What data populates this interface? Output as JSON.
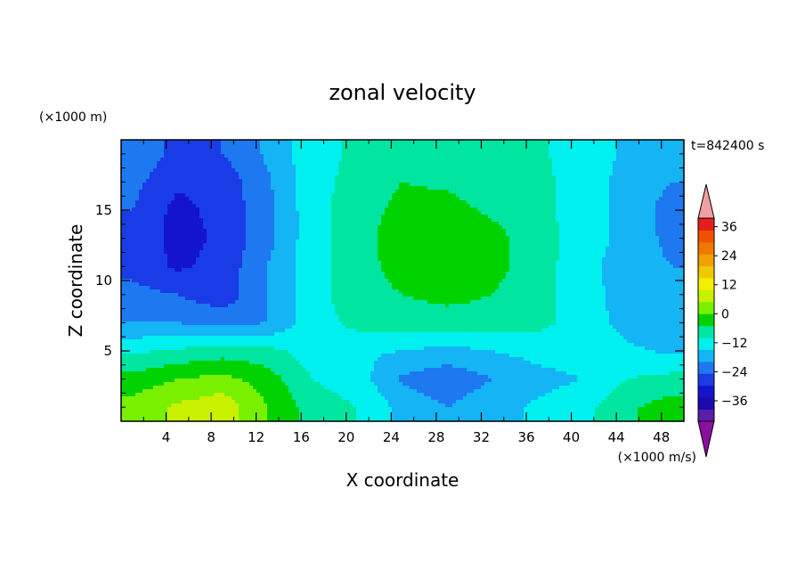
{
  "chart_data": {
    "type": "heatmap",
    "title": "zonal velocity",
    "xlabel": "X coordinate",
    "ylabel": "Z coordinate",
    "x_unit": "(×1000 m/s)",
    "y_unit": "(×1000 m)",
    "time_label": "t=842400 s",
    "xlim": [
      0,
      50
    ],
    "ylim": [
      0,
      20
    ],
    "x_ticks": [
      4,
      8,
      12,
      16,
      20,
      24,
      28,
      32,
      36,
      40,
      44,
      48
    ],
    "y_ticks": [
      5,
      10,
      15
    ],
    "colorbar": {
      "min": -42,
      "max": 42,
      "step": 6,
      "tick_values": [
        -36,
        -24,
        -12,
        0,
        12,
        24,
        36
      ],
      "tick_labels": [
        "−36",
        "−24",
        "−12",
        "0",
        "12",
        "24",
        "36"
      ],
      "colors": [
        "#5a1ea8",
        "#1a0ab0",
        "#1414cc",
        "#1a3ce6",
        "#1e78f0",
        "#14b4f5",
        "#00f0f0",
        "#00e6a0",
        "#00d200",
        "#78f000",
        "#c8f000",
        "#f0f000",
        "#f0c800",
        "#f0a000",
        "#f07800",
        "#f05000",
        "#e61e1e"
      ],
      "over_color": "#f0a0a0",
      "under_color": "#8c0fa0"
    },
    "x": [
      1,
      5,
      9,
      13,
      17,
      21,
      25,
      29,
      33,
      37,
      41,
      45,
      49
    ],
    "y": [
      1,
      3,
      5,
      7,
      9,
      11,
      13,
      15,
      17,
      19
    ],
    "values": [
      [
        15,
        19,
        22,
        12,
        3,
        0,
        -8,
        -12,
        -8,
        -5,
        -2,
        5,
        9
      ],
      [
        8,
        12,
        14,
        9,
        0,
        -3,
        -13,
        -16,
        -12,
        -8,
        -6,
        0,
        2
      ],
      [
        -1,
        1,
        3,
        2,
        -3,
        -5,
        -6,
        -8,
        -6,
        -4,
        -3,
        -5,
        -7
      ],
      [
        -12,
        -12,
        -14,
        -12,
        -3,
        2,
        3,
        3,
        3,
        2,
        -3,
        -8,
        -10
      ],
      [
        -16,
        -18,
        -22,
        -12,
        -2,
        3,
        6,
        8,
        6,
        2,
        -3,
        -9,
        -12
      ],
      [
        -20,
        -25,
        -22,
        -12,
        -2,
        3,
        9,
        12,
        8,
        3,
        -4,
        -9,
        -12
      ],
      [
        -20,
        -26,
        -23,
        -14,
        -2,
        3,
        10,
        12,
        8,
        3,
        -3,
        -8,
        -14
      ],
      [
        -18,
        -26,
        -22,
        -14,
        -2,
        3,
        8,
        8,
        5,
        2,
        -3,
        -8,
        -15
      ],
      [
        -16,
        -23,
        -22,
        -13,
        -2,
        2,
        6,
        5,
        3,
        2,
        -3,
        -8,
        -12
      ],
      [
        -13,
        -20,
        -18,
        -11,
        -2,
        1,
        5,
        4,
        2,
        1,
        -3,
        -7,
        -11
      ]
    ]
  }
}
